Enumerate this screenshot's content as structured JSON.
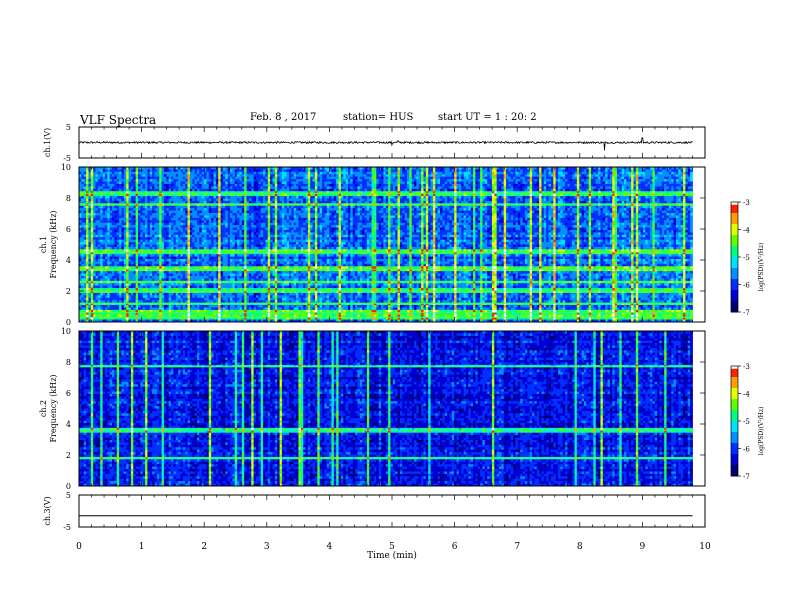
{
  "header": {
    "title": "VLF Spectra",
    "date": "Feb. 8  , 2017",
    "station": "station= HUS",
    "start": "start  UT =   1 : 20: 2"
  },
  "chart_data": [
    {
      "type": "line",
      "name": "ch1-waveform",
      "ylabel": "ch.1(V)",
      "ylim": [
        -5,
        5
      ],
      "y_ticks": [
        5,
        -5
      ],
      "xlim": [
        0,
        10
      ],
      "baseline": 0,
      "noise_amplitude": 0.3,
      "spikes": [
        {
          "x": 5.0,
          "y": -0.8
        },
        {
          "x": 5.1,
          "y": 0.6
        },
        {
          "x": 8.4,
          "y": -2.5
        },
        {
          "x": 9.0,
          "y": 1.5
        }
      ],
      "data_end": 9.8
    },
    {
      "type": "heatmap",
      "name": "ch1-spectrogram",
      "ylabel": "ch.1\nFrequency (kHz)",
      "xlim": [
        0,
        10
      ],
      "ylim": [
        0,
        10
      ],
      "y_ticks": [
        0,
        2,
        4,
        6,
        8,
        10
      ],
      "data_end": 9.8,
      "colorbar": {
        "label": "log(PSD)(V²/Hz)",
        "ticks": [
          -3,
          -4,
          -5,
          -6,
          -7
        ]
      },
      "bright_bands_khz": [
        0.3,
        0.6,
        1.2,
        2.0,
        2.6,
        3.4,
        4.5,
        7.6,
        8.3
      ]
    },
    {
      "type": "heatmap",
      "name": "ch2-spectrogram",
      "ylabel": "ch.2\nFrequency (kHz)",
      "xlim": [
        0,
        10
      ],
      "ylim": [
        0,
        10
      ],
      "y_ticks": [
        0,
        2,
        4,
        6,
        8,
        10
      ],
      "data_end": 9.8,
      "colorbar": {
        "label": "log(PSD)(V²/Hz)",
        "ticks": [
          -3,
          -4,
          -5,
          -6,
          -7
        ]
      },
      "bright_bands_khz": [
        1.8,
        3.6,
        7.7
      ]
    },
    {
      "type": "line",
      "name": "ch3-waveform",
      "ylabel": "ch.3(V)",
      "ylim": [
        -5,
        5
      ],
      "y_ticks": [
        5,
        -5
      ],
      "xlim": [
        0,
        10
      ],
      "baseline": -1.5,
      "data_end": 9.8
    }
  ],
  "x_axis": {
    "label": "Time  (min)",
    "ticks": [
      "0",
      "1",
      "2",
      "3",
      "4",
      "5",
      "6",
      "7",
      "8",
      "9",
      "10"
    ]
  },
  "colors": {
    "cmap": [
      "#000070",
      "#0000d0",
      "#0030ff",
      "#0090ff",
      "#00e0ff",
      "#00ff80",
      "#60ff00",
      "#e0ff00",
      "#ffa000",
      "#ff2000",
      "#ffffff"
    ]
  }
}
